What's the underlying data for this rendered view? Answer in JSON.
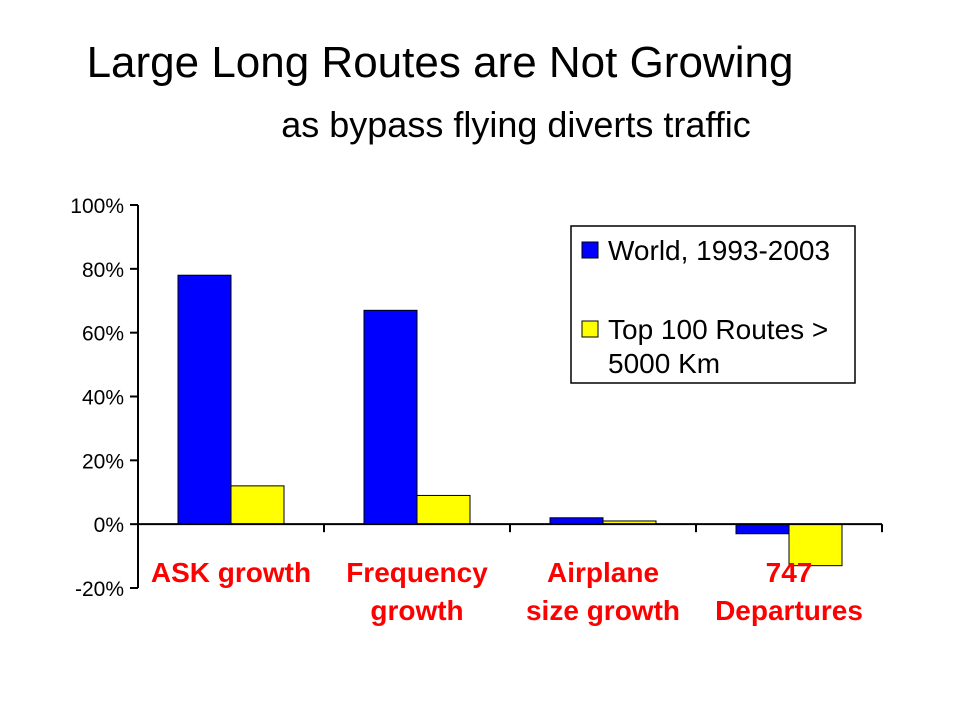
{
  "title": "Large Long Routes are Not Growing",
  "subtitle": "as bypass flying diverts traffic",
  "colors": {
    "world": "#0000ff",
    "top100": "#ffff00",
    "category_text": "#ff0000"
  },
  "chart_data": {
    "type": "bar",
    "title": "Large Long Routes are Not Growing",
    "subtitle": "as bypass flying diverts traffic",
    "categories": [
      [
        "ASK growth"
      ],
      [
        "Frequency",
        "growth"
      ],
      [
        "Airplane",
        "size growth"
      ],
      [
        "747",
        "Departures"
      ]
    ],
    "series": [
      {
        "name": "World, 1993-2003",
        "values": [
          78,
          67,
          2,
          -3
        ]
      },
      {
        "name": "Top 100 Routes > 5000 Km",
        "values": [
          12,
          9,
          1,
          -13
        ]
      }
    ],
    "legend_lines": [
      [
        "World, 1993-2003"
      ],
      [
        "Top 100 Routes >",
        "5000 Km"
      ]
    ],
    "ylim": [
      -20,
      100
    ],
    "yticks": [
      -20,
      0,
      20,
      40,
      60,
      80,
      100
    ],
    "ytick_labels": [
      "-20%",
      "0%",
      "20%",
      "40%",
      "60%",
      "80%",
      "100%"
    ],
    "legend_position": "top-right",
    "grid": false
  }
}
